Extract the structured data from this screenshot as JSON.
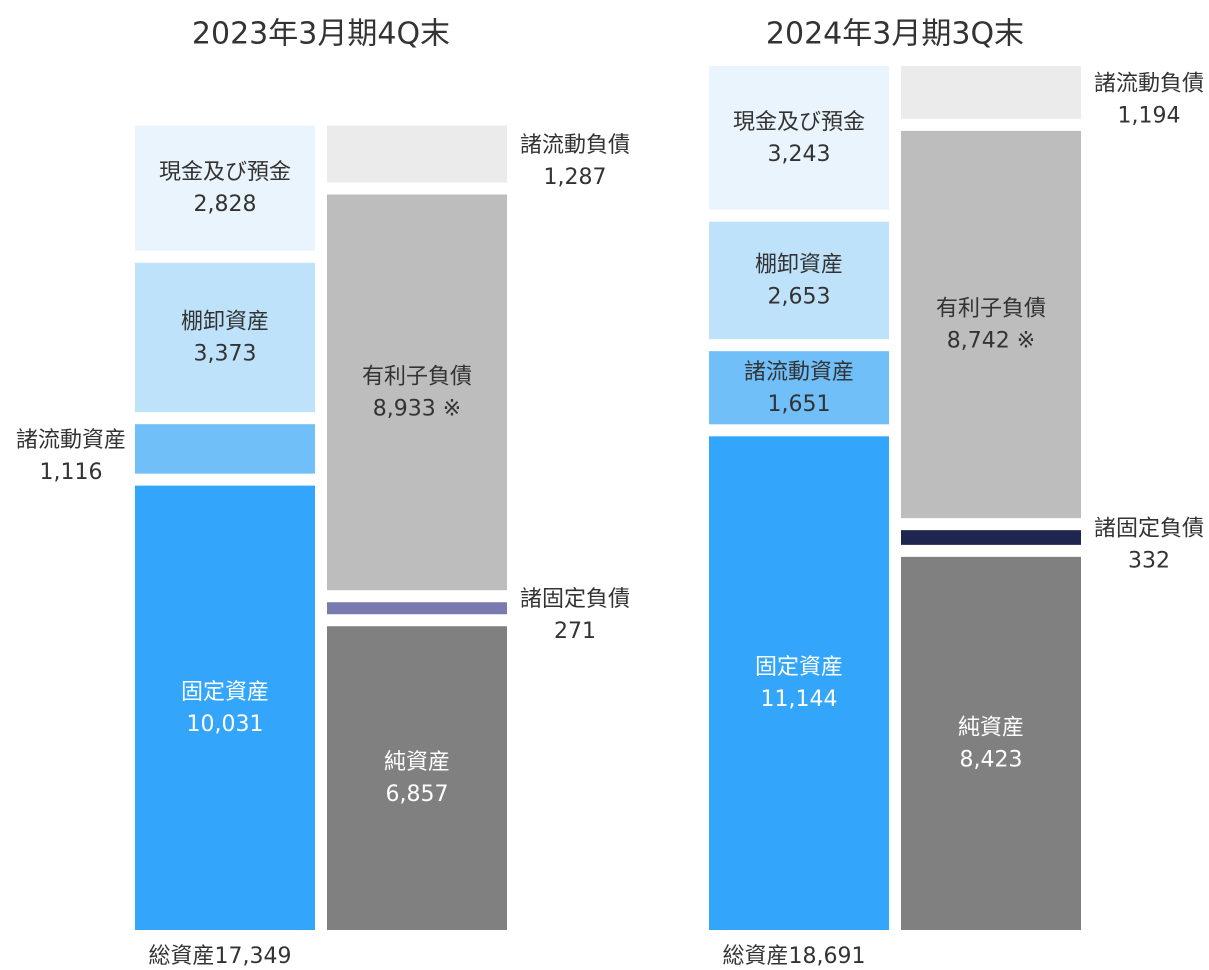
{
  "chart_data": {
    "type": "balance_sheet",
    "periods": [
      {
        "title": "2023年3月期4Q末",
        "total_label": "総資産17,349",
        "assets": {
          "names": [
            "固定資産",
            "諸流動資産",
            "棚卸資産",
            "現金及び預金"
          ],
          "values": [
            10031,
            1116,
            3373,
            2828
          ],
          "value_labels": [
            "10,031",
            "1,116",
            "3,373",
            "2,828"
          ],
          "colors": [
            "#33a6fb",
            "#70bff9",
            "#bfe2fb",
            "#eaf4fd"
          ]
        },
        "liabilities": {
          "names": [
            "純資産",
            "諸固定負債",
            "有利子負債",
            "諸流動負債"
          ],
          "values": [
            6857,
            271,
            8933,
            1287
          ],
          "value_labels": [
            "6,857",
            "271",
            "8,933 ※",
            "1,287"
          ],
          "colors": [
            "#808080",
            "#7a7ab0",
            "#bdbdbd",
            "#ebebeb"
          ]
        }
      },
      {
        "title": "2024年3月期3Q末",
        "total_label": "総資産18,691",
        "assets": {
          "names": [
            "固定資産",
            "諸流動資産",
            "棚卸資産",
            "現金及び預金"
          ],
          "values": [
            11144,
            1651,
            2653,
            3243
          ],
          "value_labels": [
            "11,144",
            "1,651",
            "2,653",
            "3,243"
          ],
          "colors": [
            "#33a6fb",
            "#70bff9",
            "#bfe2fb",
            "#eaf4fd"
          ]
        },
        "liabilities": {
          "names": [
            "純資産",
            "諸固定負債",
            "有利子負債",
            "諸流動負債"
          ],
          "values": [
            8423,
            332,
            8742,
            1194
          ],
          "value_labels": [
            "8,423",
            "332",
            "8,742 ※",
            "1,194"
          ],
          "colors": [
            "#808080",
            "#1e2550",
            "#bdbdbd",
            "#ebebeb"
          ]
        }
      }
    ]
  }
}
